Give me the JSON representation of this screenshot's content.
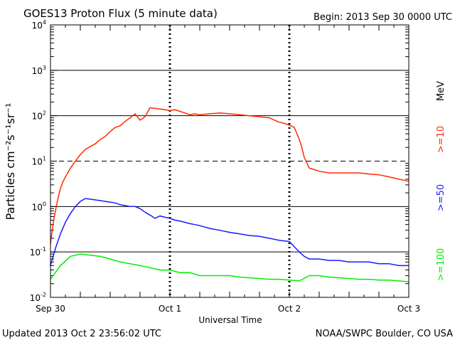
{
  "header": {
    "title": "GOES13 Proton Flux (5 minute data)",
    "begin": "Begin: 2013 Sep 30 0000 UTC"
  },
  "footer": {
    "updated": "Updated 2013 Oct  2 23:56:02 UTC",
    "source": "NOAA/SWPC Boulder, CO USA"
  },
  "legend": {
    "unit": "MeV",
    "entries": [
      {
        "label": ">=10",
        "color": "#ff2a00"
      },
      {
        "label": ">=50",
        "color": "#1a1aff"
      },
      {
        "label": ">=100",
        "color": "#00ee00"
      }
    ]
  },
  "chart_data": {
    "type": "line",
    "title": "GOES13 Proton Flux (5 minute data)",
    "xlabel": "Universal Time",
    "ylabel": "Particles cm⁻²s⁻¹sr⁻¹",
    "yscale": "log",
    "ylim": [
      0.01,
      10000
    ],
    "xlim": [
      0,
      72
    ],
    "x_unit": "hours since 2013 Sep 30 0000 UTC",
    "x_ticks": [
      {
        "x": 0,
        "label": "Sep 30"
      },
      {
        "x": 24,
        "label": "Oct 1"
      },
      {
        "x": 48,
        "label": "Oct 2"
      },
      {
        "x": 72,
        "label": "Oct 3"
      }
    ],
    "y_ticks": [
      {
        "value": 0.01,
        "base": "10",
        "exp": "-2"
      },
      {
        "value": 0.1,
        "base": "10",
        "exp": "-1"
      },
      {
        "value": 1,
        "base": "10",
        "exp": "0"
      },
      {
        "value": 10,
        "base": "10",
        "exp": "1"
      },
      {
        "value": 100,
        "base": "10",
        "exp": "2"
      },
      {
        "value": 1000,
        "base": "10",
        "exp": "3"
      },
      {
        "value": 10000,
        "base": "10",
        "exp": "4"
      }
    ],
    "thresholds": [
      {
        "value": 10,
        "style": "dashed"
      }
    ],
    "series": [
      {
        "name": ">=10 MeV",
        "color": "#ff2a00",
        "x": [
          0,
          0.5,
          1,
          1.5,
          2,
          2.5,
          3,
          4,
          5,
          6,
          7,
          8,
          9,
          10,
          11,
          12,
          13,
          14,
          15,
          16,
          17,
          18,
          19,
          20,
          21,
          22,
          23,
          24,
          25,
          26,
          27,
          28,
          29,
          30,
          32,
          34,
          36,
          38,
          40,
          42,
          44,
          45,
          46,
          47,
          48,
          49,
          50,
          50.5,
          51,
          52,
          53,
          54,
          56,
          58,
          60,
          62,
          64,
          66,
          68,
          70,
          71,
          72
        ],
        "y": [
          0.15,
          0.4,
          0.8,
          1.5,
          2.5,
          3.5,
          4.5,
          7,
          10,
          14,
          18,
          21,
          24,
          30,
          35,
          45,
          55,
          60,
          75,
          90,
          110,
          80,
          95,
          150,
          145,
          140,
          135,
          130,
          135,
          125,
          115,
          105,
          110,
          105,
          110,
          115,
          110,
          105,
          100,
          95,
          90,
          80,
          72,
          68,
          62,
          55,
          30,
          20,
          12,
          7,
          6.5,
          6,
          5.5,
          5.5,
          5.5,
          5.5,
          5.2,
          5,
          4.5,
          4,
          3.8,
          3.6
        ]
      },
      {
        "name": ">=50 MeV",
        "color": "#1a1aff",
        "x": [
          0,
          1,
          2,
          3,
          4,
          5,
          6,
          7,
          8,
          9,
          10,
          11,
          12,
          13,
          14,
          15,
          16,
          17,
          18,
          19,
          20,
          21,
          22,
          23,
          24,
          25,
          26,
          27,
          28,
          29,
          30,
          32,
          34,
          36,
          38,
          40,
          42,
          44,
          46,
          48,
          49,
          50,
          51,
          52,
          54,
          56,
          58,
          60,
          62,
          64,
          66,
          68,
          70,
          72
        ],
        "y": [
          0.05,
          0.12,
          0.25,
          0.45,
          0.7,
          1.0,
          1.3,
          1.5,
          1.45,
          1.4,
          1.35,
          1.3,
          1.25,
          1.2,
          1.1,
          1.05,
          1.0,
          1.0,
          0.9,
          0.75,
          0.65,
          0.55,
          0.62,
          0.58,
          0.55,
          0.5,
          0.48,
          0.45,
          0.42,
          0.4,
          0.38,
          0.33,
          0.3,
          0.27,
          0.25,
          0.23,
          0.22,
          0.2,
          0.18,
          0.17,
          0.13,
          0.1,
          0.08,
          0.07,
          0.07,
          0.065,
          0.065,
          0.06,
          0.06,
          0.06,
          0.055,
          0.055,
          0.05,
          0.05
        ]
      },
      {
        "name": ">=100 MeV",
        "color": "#00ee00",
        "x": [
          0,
          2,
          4,
          6,
          8,
          10,
          12,
          14,
          16,
          18,
          20,
          22,
          24,
          26,
          28,
          30,
          32,
          34,
          36,
          38,
          40,
          42,
          44,
          46,
          48,
          50,
          52,
          54,
          56,
          58,
          60,
          62,
          64,
          66,
          68,
          70,
          72
        ],
        "y": [
          0.025,
          0.05,
          0.08,
          0.09,
          0.085,
          0.08,
          0.07,
          0.06,
          0.055,
          0.05,
          0.045,
          0.04,
          0.04,
          0.035,
          0.035,
          0.03,
          0.03,
          0.03,
          0.03,
          0.028,
          0.027,
          0.026,
          0.025,
          0.025,
          0.024,
          0.023,
          0.03,
          0.03,
          0.028,
          0.027,
          0.026,
          0.025,
          0.025,
          0.024,
          0.024,
          0.023,
          0.022
        ]
      }
    ]
  }
}
